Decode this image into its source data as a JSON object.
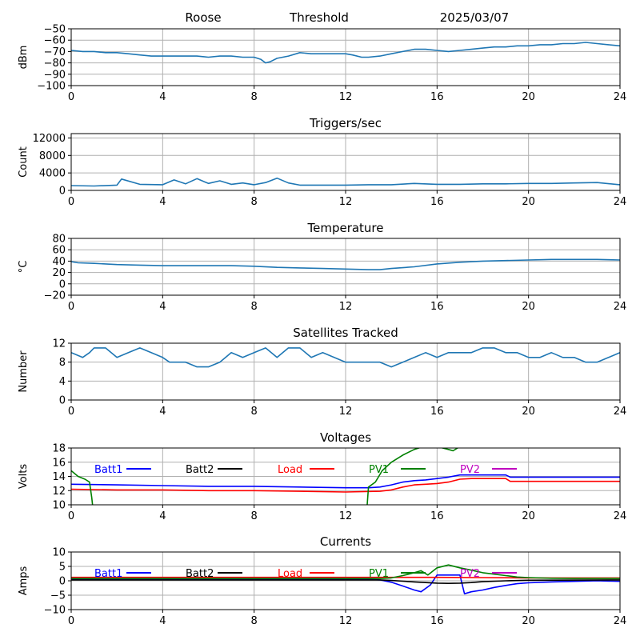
{
  "header": {
    "station": "Roose",
    "mode": "Threshold",
    "date": "2025/03/07"
  },
  "colors": {
    "series_default": "#1f77b4",
    "grid": "#b0b0b0",
    "batt1": "#0000ff",
    "batt2": "#000000",
    "load": "#ff0000",
    "pv1": "#008000",
    "pv2": "#bf00bf"
  },
  "chart_data": [
    {
      "type": "line",
      "title": "",
      "xlabel": "",
      "ylabel": "dBm",
      "xlim": [
        0,
        24
      ],
      "ylim": [
        -100,
        -50
      ],
      "xticks": [
        0,
        4,
        8,
        12,
        16,
        20,
        24
      ],
      "yticks": [
        -100,
        -90,
        -80,
        -70,
        -60,
        -50
      ],
      "grid": true,
      "series": [
        {
          "color": "#1f77b4",
          "x": [
            0,
            0.5,
            1,
            1.5,
            2,
            2.5,
            3,
            3.5,
            4,
            4.5,
            5,
            5.5,
            6,
            6.5,
            7,
            7.5,
            8,
            8.3,
            8.5,
            8.7,
            9,
            9.5,
            10,
            10.5,
            11,
            11.5,
            12,
            12.3,
            12.7,
            13,
            13.5,
            14,
            14.5,
            15,
            15.5,
            16,
            16.5,
            17,
            17.5,
            18,
            18.5,
            19,
            19.5,
            20,
            20.5,
            21,
            21.5,
            22,
            22.5,
            23,
            23.5,
            24
          ],
          "y": [
            -69,
            -70,
            -70,
            -71,
            -71,
            -72,
            -73,
            -74,
            -74,
            -74,
            -74,
            -74,
            -75,
            -74,
            -74,
            -75,
            -75,
            -77,
            -80,
            -79,
            -76,
            -74,
            -71,
            -72,
            -72,
            -72,
            -72,
            -73,
            -75,
            -75,
            -74,
            -72,
            -70,
            -68,
            -68,
            -69,
            -70,
            -69,
            -68,
            -67,
            -66,
            -66,
            -65,
            -65,
            -64,
            -64,
            -63,
            -63,
            -62,
            -63,
            -64,
            -65
          ]
        }
      ]
    },
    {
      "type": "line",
      "title": "Triggers/sec",
      "xlabel": "",
      "ylabel": "Count",
      "xlim": [
        0,
        24
      ],
      "ylim": [
        0,
        13000
      ],
      "xticks": [
        0,
        4,
        8,
        12,
        16,
        20,
        24
      ],
      "yticks": [
        0,
        4000,
        8000,
        12000
      ],
      "grid": true,
      "series": [
        {
          "color": "#1f77b4",
          "x": [
            0,
            1,
            2,
            2.2,
            3,
            4,
            4.5,
            5,
            5.5,
            6,
            6.5,
            7,
            7.5,
            8,
            8.5,
            9,
            9.5,
            10,
            11,
            12,
            13,
            14,
            15,
            16,
            17,
            18,
            19,
            20,
            21,
            22,
            23,
            24
          ],
          "y": [
            1100,
            1000,
            1200,
            2600,
            1400,
            1300,
            2400,
            1500,
            2700,
            1600,
            2200,
            1400,
            1700,
            1300,
            1800,
            2800,
            1700,
            1200,
            1200,
            1200,
            1300,
            1300,
            1600,
            1400,
            1400,
            1500,
            1500,
            1600,
            1600,
            1700,
            1800,
            1300
          ]
        }
      ]
    },
    {
      "type": "line",
      "title": "Temperature",
      "xlabel": "",
      "ylabel": "°C",
      "xlim": [
        0,
        24
      ],
      "ylim": [
        -20,
        80
      ],
      "xticks": [
        0,
        4,
        8,
        12,
        16,
        20,
        24
      ],
      "yticks": [
        -20,
        0,
        20,
        40,
        60,
        80
      ],
      "grid": true,
      "series": [
        {
          "color": "#1f77b4",
          "x": [
            0,
            0.3,
            1,
            2,
            3,
            4,
            5,
            6,
            7,
            8,
            9,
            10,
            11,
            12,
            13,
            13.5,
            14,
            15,
            16,
            17,
            18,
            19,
            20,
            21,
            22,
            23,
            24
          ],
          "y": [
            39,
            37,
            36,
            34,
            33,
            32,
            32,
            32,
            32,
            31,
            29,
            28,
            27,
            26,
            25,
            25,
            27,
            30,
            35,
            38,
            40,
            41,
            42,
            43,
            43,
            43,
            42
          ]
        }
      ]
    },
    {
      "type": "line",
      "title": "Satellites Tracked",
      "xlabel": "",
      "ylabel": "Number",
      "xlim": [
        0,
        24
      ],
      "ylim": [
        0,
        12
      ],
      "xticks": [
        0,
        4,
        8,
        12,
        16,
        20,
        24
      ],
      "yticks": [
        0,
        4,
        8,
        12
      ],
      "grid": true,
      "series": [
        {
          "color": "#1f77b4",
          "x": [
            0,
            0.5,
            0.8,
            1,
            1.5,
            2,
            2.5,
            3,
            3.5,
            4,
            4.3,
            5,
            5.5,
            6,
            6.5,
            7,
            7.5,
            8,
            8.5,
            9,
            9.5,
            10,
            10.5,
            11,
            11.5,
            12,
            12.5,
            13,
            13.5,
            14,
            14.5,
            15,
            15.5,
            16,
            16.5,
            17,
            17.5,
            18,
            18.5,
            19,
            19.5,
            20,
            20.5,
            21,
            21.5,
            22,
            22.5,
            23,
            23.5,
            24
          ],
          "y": [
            10,
            9,
            10,
            11,
            11,
            9,
            10,
            11,
            10,
            9,
            8,
            8,
            7,
            7,
            8,
            10,
            9,
            10,
            11,
            9,
            11,
            11,
            9,
            10,
            9,
            8,
            8,
            8,
            8,
            7,
            8,
            9,
            10,
            9,
            10,
            10,
            10,
            11,
            11,
            10,
            10,
            9,
            9,
            10,
            9,
            9,
            8,
            8,
            9,
            10
          ]
        }
      ]
    },
    {
      "type": "line",
      "title": "Voltages",
      "xlabel": "",
      "ylabel": "Volts",
      "xlim": [
        0,
        24
      ],
      "ylim": [
        10,
        18
      ],
      "xticks": [
        0,
        4,
        8,
        12,
        16,
        20,
        24
      ],
      "yticks": [
        10,
        12,
        14,
        16,
        18
      ],
      "grid": true,
      "legend": "top, single row",
      "series": [
        {
          "name": "Batt1",
          "color": "#0000ff",
          "x": [
            0,
            2,
            4,
            6,
            8,
            10,
            12,
            13,
            13.5,
            14,
            14.5,
            15,
            15.5,
            16,
            16.5,
            17,
            17.5,
            18,
            18.5,
            19,
            19.2,
            20,
            22,
            24
          ],
          "y": [
            12.9,
            12.8,
            12.7,
            12.6,
            12.6,
            12.5,
            12.4,
            12.4,
            12.5,
            12.8,
            13.2,
            13.4,
            13.5,
            13.7,
            13.9,
            14.2,
            14.2,
            14.2,
            14.2,
            14.2,
            13.9,
            13.9,
            13.9,
            13.9
          ]
        },
        {
          "name": "Batt2",
          "color": "#000000",
          "x": [],
          "y": []
        },
        {
          "name": "Load",
          "color": "#ff0000",
          "x": [
            0,
            2,
            4,
            6,
            8,
            10,
            12,
            13.5,
            14,
            14.5,
            15,
            15.5,
            16,
            16.5,
            17,
            17.5,
            18,
            18.5,
            19,
            19.2,
            20,
            22,
            24
          ],
          "y": [
            12.2,
            12.1,
            12.1,
            12.0,
            12.0,
            11.9,
            11.8,
            11.9,
            12.1,
            12.5,
            12.8,
            12.9,
            13.0,
            13.2,
            13.6,
            13.7,
            13.7,
            13.7,
            13.7,
            13.3,
            13.3,
            13.3,
            13.3
          ]
        },
        {
          "name": "PV1",
          "color": "#008000",
          "x": [
            0,
            0.3,
            0.6,
            0.8,
            0.9,
            1.0,
            12.9,
            13.0,
            13.3,
            13.6,
            14,
            14.5,
            15,
            15.5,
            16,
            16.5,
            16.7,
            17,
            17.5
          ],
          "y": [
            14.8,
            14.0,
            13.6,
            13.2,
            11.0,
            8.0,
            8.0,
            12.5,
            13.2,
            14.8,
            16.0,
            17.0,
            17.8,
            18.3,
            18.2,
            17.8,
            17.6,
            18.2,
            18.6
          ]
        },
        {
          "name": "PV2",
          "color": "#bf00bf",
          "x": [],
          "y": []
        }
      ]
    },
    {
      "type": "line",
      "title": "Currents",
      "xlabel": "",
      "ylabel": "Amps",
      "xlim": [
        0,
        24
      ],
      "ylim": [
        -10,
        10
      ],
      "xticks": [
        0,
        4,
        8,
        12,
        16,
        20,
        24
      ],
      "yticks": [
        -10,
        -5,
        0,
        5,
        10
      ],
      "grid": true,
      "legend": "top, single row",
      "series": [
        {
          "name": "Batt1",
          "color": "#0000ff",
          "x": [
            0,
            2,
            4,
            6,
            8,
            10,
            12,
            13,
            13.5,
            14,
            14.5,
            15,
            15.3,
            15.7,
            16,
            16.5,
            17,
            17.2,
            17.5,
            18,
            18.5,
            19,
            19.5,
            20,
            21,
            22,
            23,
            24
          ],
          "y": [
            0.5,
            0.5,
            0.5,
            0.5,
            0.5,
            0.5,
            0.5,
            0.5,
            0.3,
            -0.5,
            -1.8,
            -3.2,
            -3.8,
            -1.5,
            2.0,
            2.0,
            2.0,
            -4.5,
            -3.8,
            -3.2,
            -2.3,
            -1.6,
            -1.0,
            -0.7,
            -0.4,
            -0.2,
            0,
            -0.2
          ]
        },
        {
          "name": "Batt2",
          "color": "#000000",
          "x": [
            0,
            4,
            8,
            12,
            13.5,
            14,
            15,
            16,
            16.5,
            17,
            17.5,
            18,
            19,
            20,
            24
          ],
          "y": [
            0.3,
            0.3,
            0.3,
            0.3,
            0.3,
            0.1,
            -0.4,
            -0.8,
            -0.9,
            -0.8,
            -0.6,
            -0.3,
            0,
            0.2,
            0.3
          ]
        },
        {
          "name": "Load",
          "color": "#ff0000",
          "x": [
            0,
            4,
            8,
            12,
            14,
            16,
            18,
            20,
            24
          ],
          "y": [
            1.2,
            1.2,
            1.2,
            1.2,
            1.2,
            1.2,
            1.1,
            1.0,
            1.0
          ]
        },
        {
          "name": "PV1",
          "color": "#008000",
          "x": [
            0,
            4,
            8,
            12,
            13.5,
            14,
            14.5,
            15,
            15.3,
            15.6,
            16,
            16.5,
            17,
            17.5,
            18,
            18.5,
            19,
            19.5,
            20,
            21,
            22,
            24
          ],
          "y": [
            0.8,
            0.8,
            0.8,
            0.8,
            0.8,
            1.0,
            1.8,
            2.8,
            3.5,
            2.0,
            4.5,
            5.5,
            4.5,
            3.7,
            2.8,
            2.3,
            1.8,
            1.3,
            1.1,
            0.9,
            0.8,
            0.8
          ]
        },
        {
          "name": "PV2",
          "color": "#bf00bf",
          "x": [],
          "y": []
        }
      ]
    }
  ]
}
